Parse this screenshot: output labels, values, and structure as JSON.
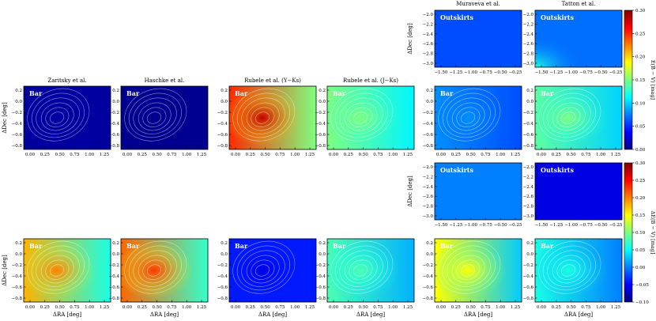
{
  "colormap": [
    "#00007f",
    "#0000ff",
    "#007fff",
    "#00ffff",
    "#7fff7f",
    "#ffff00",
    "#ff7f00",
    "#ff0000",
    "#7f0000"
  ],
  "chart_data": [
    {
      "type": "heatmap",
      "id": "E_BV_maps",
      "colorbar": {
        "label": "E(B − V) [mag]",
        "range": [
          0.0,
          0.3
        ],
        "ticks": [
          "0.30",
          "0.25",
          "0.20",
          "0.15",
          "0.10",
          "0.05",
          "0.00"
        ]
      },
      "bar_panels": [
        {
          "title": "Zaritsky et al.",
          "label": "Bar",
          "mean": 0.01,
          "peak": 0.0,
          "gradient": 0.0
        },
        {
          "title": "Haschke et al.",
          "label": "Bar",
          "mean": 0.005,
          "peak": 0.0,
          "gradient": 0.0
        },
        {
          "title": "Rubele et al. (Y−Ks)",
          "label": "Bar",
          "mean": 0.2,
          "peak": 0.08,
          "gradient": 0.05
        },
        {
          "title": "Rubele et al. (J−Ks)",
          "label": "Bar",
          "mean": 0.13,
          "peak": 0.02,
          "gradient": 0.02
        },
        {
          "title": "",
          "label": "Bar",
          "mean": 0.07,
          "peak": 0.01,
          "gradient": 0.01
        },
        {
          "title": "",
          "label": "Bar",
          "mean": 0.12,
          "peak": 0.03,
          "gradient": 0.02
        }
      ],
      "outskirts_panels": [
        {
          "title": "Muraveva et al.",
          "label": "Outskirts",
          "mean": 0.06,
          "corner": 0.0
        },
        {
          "title": "Tatton et al.",
          "label": "Outskirts",
          "mean": 0.07,
          "corner": 0.05
        }
      ]
    },
    {
      "type": "heatmap",
      "id": "dE_BV_maps",
      "colorbar": {
        "label": "ΔE(B − V) [mag]",
        "range": [
          -0.1,
          0.3
        ],
        "ticks": [
          "0.30",
          "0.25",
          "0.20",
          "0.15",
          "0.10",
          "0.05",
          "0.00",
          "−0.05",
          "−0.10"
        ]
      },
      "bar_panels": [
        {
          "label": "Bar",
          "mean": 0.12,
          "peak": 0.08,
          "gradient": 0.06
        },
        {
          "label": "Bar",
          "mean": 0.14,
          "peak": 0.09,
          "gradient": 0.07
        },
        {
          "label": "Bar",
          "mean": -0.04,
          "peak": -0.02,
          "gradient": 0.0
        },
        {
          "label": "Bar",
          "mean": 0.05,
          "peak": 0.03,
          "gradient": 0.03
        },
        {
          "label": "Bar",
          "mean": 0.09,
          "peak": 0.06,
          "gradient": 0.06
        },
        {
          "label": "Bar",
          "mean": 0.03,
          "peak": 0.03,
          "gradient": 0.03
        }
      ],
      "outskirts_panels": [
        {
          "label": "Outskirts",
          "mean": 0.0,
          "corner": 0.0
        },
        {
          "label": "Outskirts",
          "mean": -0.06,
          "corner": 0.0
        }
      ]
    }
  ],
  "axes": {
    "bar_x_ticks": [
      "0.00",
      "0.25",
      "0.50",
      "0.75",
      "1.00",
      "1.25"
    ],
    "bar_y_ticks": [
      "0.2",
      "0.0",
      "−0.2",
      "−0.4",
      "−0.6",
      "−0.8"
    ],
    "out_x_ticks": [
      "−1.50",
      "−1.25",
      "−1.00",
      "−0.75",
      "−0.50",
      "−0.25"
    ],
    "out_y_ticks": [
      "−2.0",
      "−2.2",
      "−2.4",
      "−2.6",
      "−2.8",
      "−3.0"
    ],
    "xlabel": "ΔRA [deg]",
    "ylabel": "ΔDec [deg]"
  }
}
